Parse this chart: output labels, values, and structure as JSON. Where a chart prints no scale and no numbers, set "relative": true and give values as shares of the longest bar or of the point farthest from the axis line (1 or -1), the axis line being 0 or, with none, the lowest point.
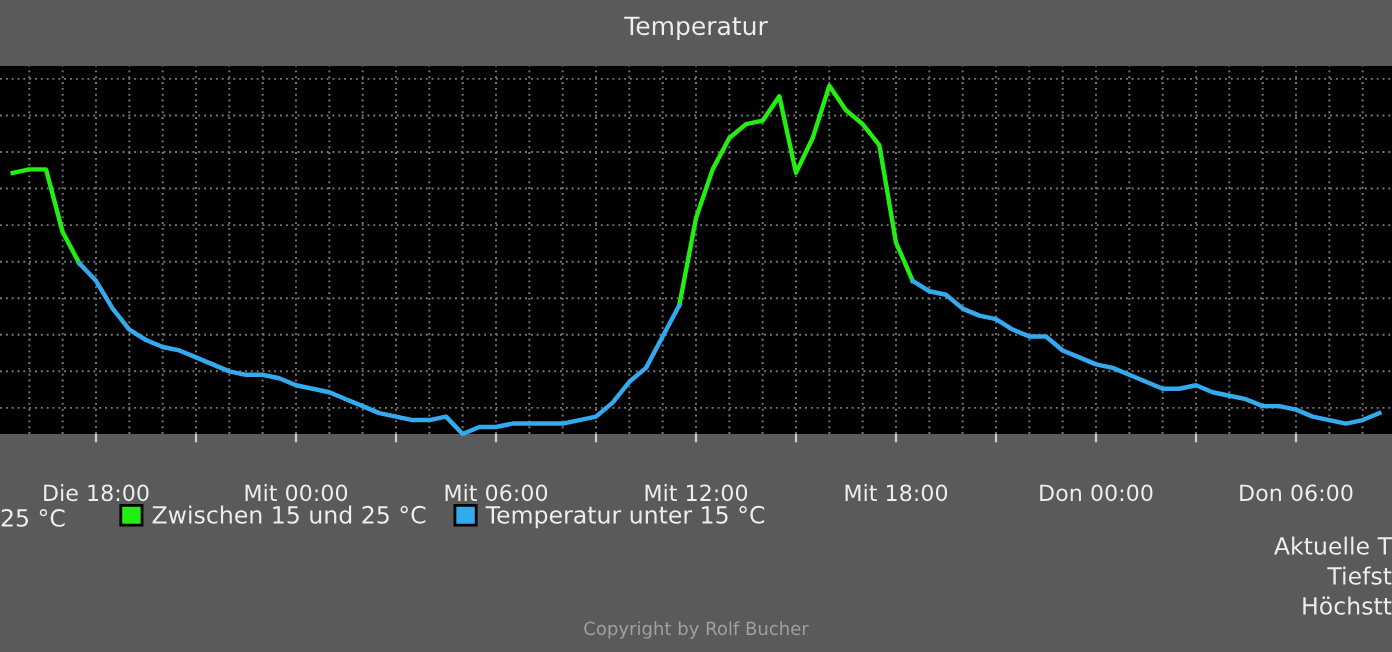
{
  "chart_data": {
    "type": "line",
    "title": "Temperatur",
    "relative": true,
    "categories": [
      null,
      null,
      null,
      null,
      null,
      "Die 18:00",
      null,
      null,
      null,
      null,
      null,
      null,
      null,
      null,
      null,
      null,
      null,
      "Mit 00:00",
      null,
      null,
      null,
      null,
      null,
      null,
      null,
      null,
      null,
      null,
      null,
      "Mit 06:00",
      null,
      null,
      null,
      null,
      null,
      null,
      null,
      null,
      null,
      null,
      null,
      "Mit 12:00",
      null,
      null,
      null,
      null,
      null,
      null,
      null,
      null,
      null,
      null,
      null,
      "Mit 18:00",
      null,
      null,
      null,
      null,
      null,
      null,
      null,
      null,
      null,
      null,
      null,
      "Don 00:00",
      null,
      null,
      null,
      null,
      null,
      null,
      null,
      null,
      null,
      null,
      null,
      "Don 06:00",
      null,
      null,
      null,
      null,
      null
    ],
    "grid": true,
    "legend": "bottom",
    "marker": "none",
    "line_style": "solid",
    "series": [
      {
        "name": "Zwischen 15 und 25 °C",
        "color": "#22ee11",
        "values": [
          0.75,
          0.76,
          0.76,
          0.58,
          0.49,
          null,
          null,
          null,
          null,
          null,
          null,
          null,
          null,
          null,
          null,
          null,
          null,
          null,
          null,
          null,
          null,
          null,
          null,
          null,
          null,
          null,
          null,
          null,
          null,
          null,
          null,
          null,
          null,
          null,
          null,
          null,
          null,
          null,
          null,
          null,
          0.37,
          0.62,
          0.76,
          0.85,
          0.89,
          0.9,
          0.97,
          0.75,
          0.85,
          1.0,
          0.93,
          0.89,
          0.83,
          0.55,
          0.44,
          null,
          null,
          null,
          null,
          null,
          null,
          null,
          null,
          null,
          null,
          null,
          null,
          null,
          null,
          null,
          null,
          null,
          null,
          null,
          null,
          null,
          null,
          null,
          null,
          null,
          null,
          null,
          null
        ]
      },
      {
        "name": "Temperatur unter 15 °C",
        "color": "#33aaee",
        "values": [
          null,
          null,
          null,
          null,
          0.49,
          0.44,
          0.36,
          0.3,
          0.27,
          0.25,
          0.24,
          0.22,
          0.2,
          0.18,
          0.17,
          0.17,
          0.16,
          0.14,
          0.13,
          0.12,
          0.1,
          0.08,
          0.06,
          0.05,
          0.04,
          0.04,
          0.05,
          0,
          0.02,
          0.02,
          0.03,
          0.03,
          0.03,
          0.03,
          0.04,
          0.05,
          0.09,
          0.15,
          0.19,
          0.28,
          0.37,
          null,
          null,
          null,
          null,
          null,
          null,
          null,
          null,
          null,
          null,
          null,
          null,
          null,
          0.44,
          0.41,
          0.4,
          0.36,
          0.34,
          0.33,
          0.3,
          0.28,
          0.28,
          0.24,
          0.22,
          0.2,
          0.19,
          0.17,
          0.15,
          0.13,
          0.13,
          0.14,
          0.12,
          0.11,
          0.1,
          0.08,
          0.08,
          0.07,
          0.05,
          0.04,
          0.03,
          0.04,
          0.06
        ]
      }
    ],
    "annotations": [
      "25 °C",
      "Aktuelle T",
      "Tiefst",
      "Höchstt",
      "Copyright by Rolf Bucher"
    ]
  }
}
